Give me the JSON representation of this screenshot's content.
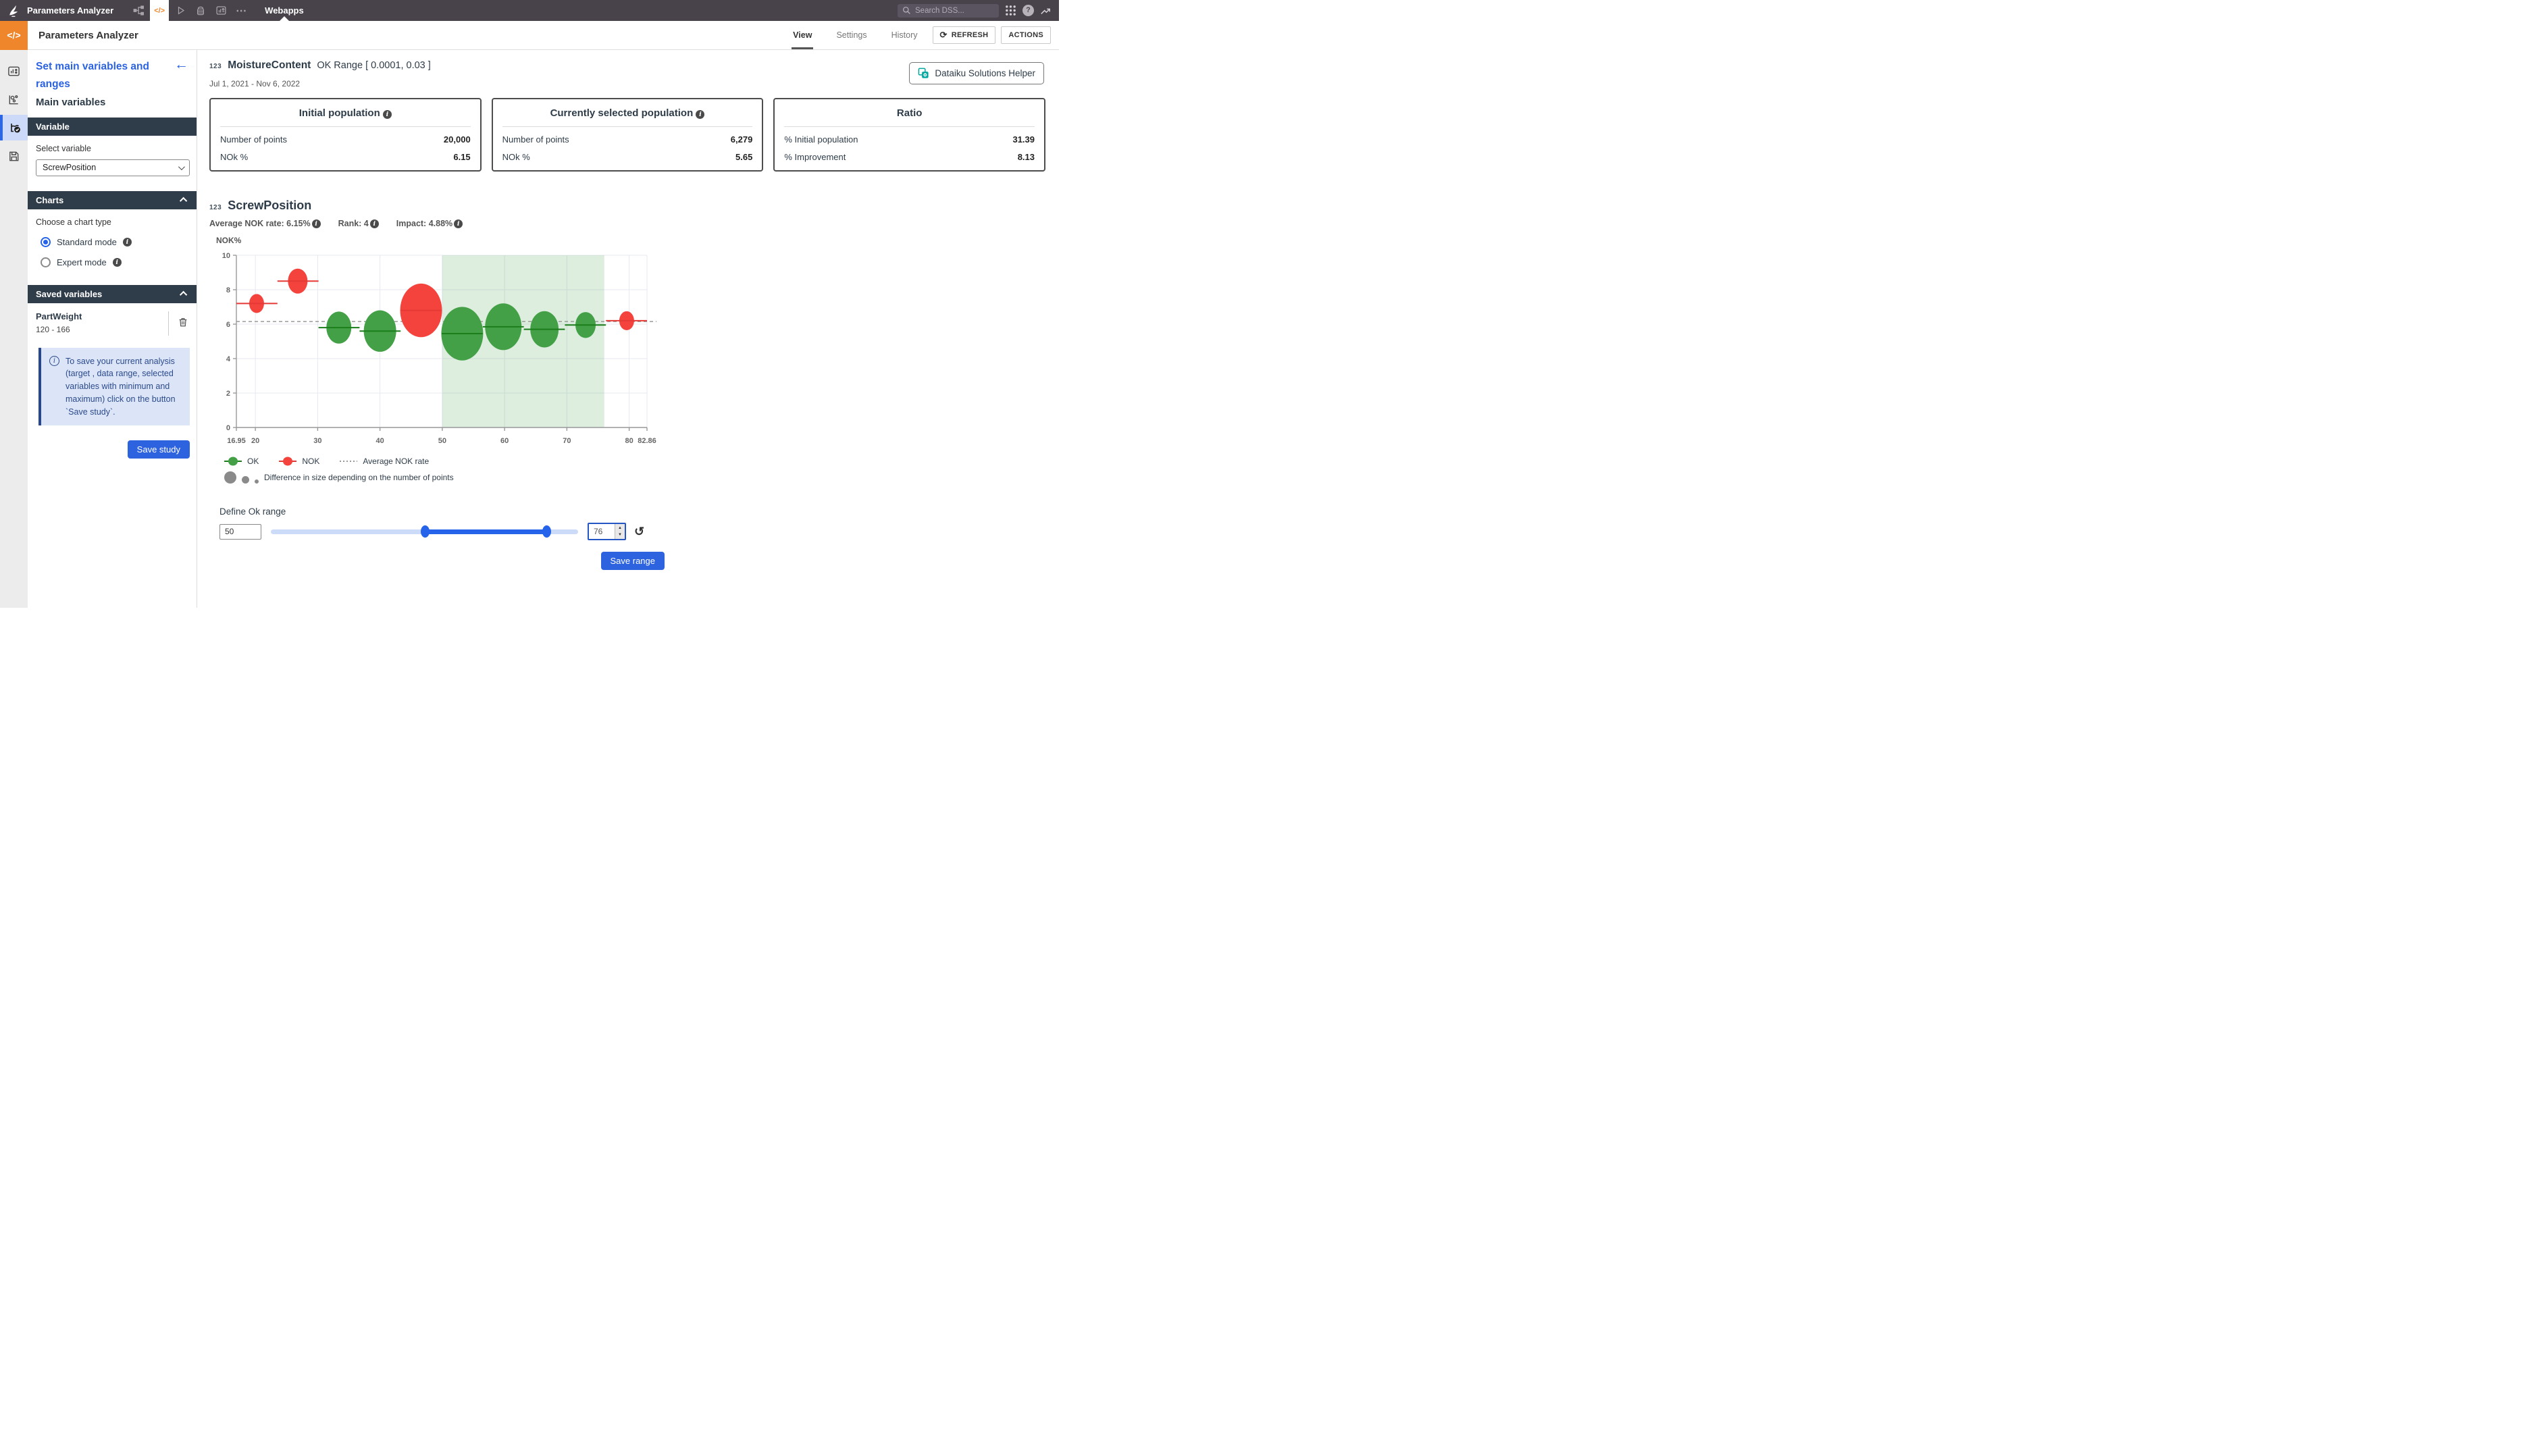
{
  "icons": {
    "code": "</>",
    "more": "⋯",
    "help": "?",
    "back_arrow": "←",
    "refresh": "⟳",
    "undo": "↺",
    "info": "i",
    "spin_up": "▲",
    "spin_down": "▼",
    "teal": "#00a8a0"
  },
  "navbar": {
    "project_name": "Parameters Analyzer",
    "section": "Webapps",
    "search_placeholder": "Search DSS..."
  },
  "header": {
    "title": "Parameters Analyzer",
    "tabs": [
      "View",
      "Settings",
      "History"
    ],
    "active_tab": "View",
    "refresh_label": "REFRESH",
    "actions_label": "ACTIONS"
  },
  "sidebar": {
    "nav_title": "Set main variables and ranges",
    "subtitle": "Main variables",
    "variable_section": {
      "title": "Variable",
      "select_label": "Select variable",
      "selected": "ScrewPosition"
    },
    "charts_section": {
      "title": "Charts",
      "choose_label": "Choose a chart type",
      "options": [
        {
          "label": "Standard mode",
          "selected": true
        },
        {
          "label": "Expert mode",
          "selected": false
        }
      ]
    },
    "saved_section": {
      "title": "Saved variables",
      "saved": [
        {
          "name": "PartWeight",
          "range": "120 - 166"
        }
      ],
      "info_text": "To save your current analysis (target , data range, selected variables with minimum and maximum) click on the button `Save study`.",
      "save_button": "Save study"
    }
  },
  "main": {
    "target": {
      "type_badge": "123",
      "name": "MoistureContent",
      "ok_range": "OK Range [ 0.0001, 0.03 ]",
      "date_range": "Jul 1, 2021 - Nov 6, 2022"
    },
    "helper_button": "Dataiku Solutions Helper",
    "cards": [
      {
        "title": "Initial population",
        "has_info": true,
        "rows": [
          {
            "label": "Number of points",
            "value": "20,000"
          },
          {
            "label": "NOk %",
            "value": "6.15"
          }
        ]
      },
      {
        "title": "Currently selected population",
        "has_info": true,
        "rows": [
          {
            "label": "Number of points",
            "value": "6,279"
          },
          {
            "label": "NOk %",
            "value": "5.65"
          }
        ]
      },
      {
        "title": "Ratio",
        "has_info": false,
        "rows": [
          {
            "label": "% Initial population",
            "value": "31.39"
          },
          {
            "label": "% Improvement",
            "value": "8.13"
          }
        ]
      }
    ],
    "variable": {
      "type_badge": "123",
      "name": "ScrewPosition",
      "stats": [
        "Average NOK rate: 6.15%",
        "Rank: 4",
        "Impact: 4.88%"
      ]
    },
    "range_control": {
      "label": "Define Ok range",
      "min_value": "50",
      "max_value": "76",
      "save_button": "Save range"
    }
  },
  "chart_data": {
    "type": "scatter",
    "subtype": "bubble-bins",
    "title": "",
    "xlabel": "",
    "ylabel": "NOK%",
    "xlim": [
      16.95,
      82.86
    ],
    "ylim": [
      0,
      10
    ],
    "y_ticks": [
      0,
      2,
      4,
      6,
      8,
      10
    ],
    "x_ticks": [
      16.95,
      20,
      30,
      40,
      50,
      60,
      70,
      80,
      82.86
    ],
    "grid": true,
    "avg_nok_rate": 6.15,
    "selected_ok_range": [
      50,
      76
    ],
    "bin_start": 16.95,
    "bin_width": 6.591,
    "points": [
      {
        "x": 20.2,
        "y": 7.2,
        "rx": 11,
        "status": "NOK"
      },
      {
        "x": 26.8,
        "y": 8.5,
        "rx": 14.5,
        "status": "NOK"
      },
      {
        "x": 33.4,
        "y": 5.8,
        "rx": 18.5,
        "status": "OK"
      },
      {
        "x": 40.0,
        "y": 5.6,
        "rx": 24,
        "status": "OK"
      },
      {
        "x": 46.6,
        "y": 6.8,
        "rx": 31,
        "status": "NOK"
      },
      {
        "x": 53.2,
        "y": 5.45,
        "rx": 31,
        "status": "OK"
      },
      {
        "x": 59.8,
        "y": 5.85,
        "rx": 27,
        "status": "OK"
      },
      {
        "x": 66.4,
        "y": 5.7,
        "rx": 21,
        "status": "OK"
      },
      {
        "x": 73.0,
        "y": 5.95,
        "rx": 15,
        "status": "OK"
      },
      {
        "x": 79.6,
        "y": 6.2,
        "rx": 11,
        "status": "NOK"
      }
    ],
    "colors": {
      "ok": "#43a047",
      "ok_line": "#1b7e1b",
      "nok": "#f4433c",
      "nok_line": "#e53935",
      "region": "rgba(67,160,71,0.18)",
      "avg_line": "#9a9a9a"
    },
    "legend": {
      "ok": "OK",
      "nok": "NOK",
      "avg": "Average NOK rate",
      "size_note": "Difference in size depending on the number of points"
    }
  }
}
